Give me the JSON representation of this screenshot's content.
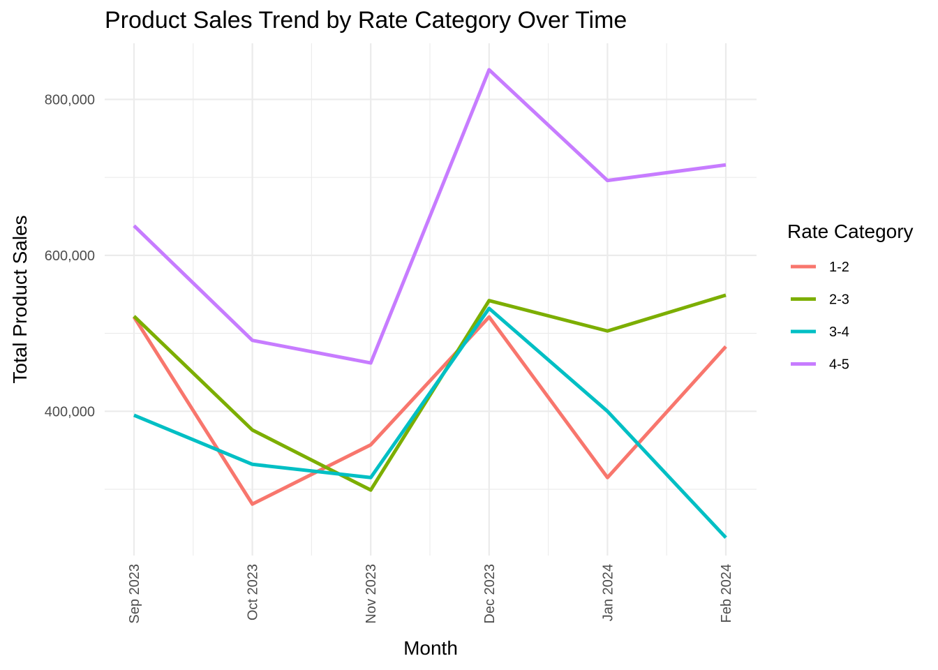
{
  "chart_data": {
    "type": "line",
    "title": "Product Sales Trend by Rate Category Over Time",
    "xlabel": "Month",
    "ylabel": "Total Product Sales",
    "categories": [
      "Sep 2023",
      "Oct 2023",
      "Nov 2023",
      "Dec 2023",
      "Jan 2024",
      "Feb 2024"
    ],
    "y_ticks": [
      400000,
      600000,
      800000
    ],
    "y_tick_labels": [
      "400,000",
      "600,000",
      "800,000"
    ],
    "ylim": [
      215000,
      872000
    ],
    "grid": true,
    "legend": {
      "title": "Rate Category",
      "position": "right"
    },
    "series": [
      {
        "name": "1-2",
        "color": "#F8766D",
        "values": [
          521000,
          281000,
          357000,
          521000,
          315000,
          483000
        ]
      },
      {
        "name": "2-3",
        "color": "#7CAE00",
        "values": [
          522000,
          376000,
          299000,
          542000,
          503000,
          549000
        ]
      },
      {
        "name": "3-4",
        "color": "#00BFC4",
        "values": [
          395000,
          332000,
          315000,
          532000,
          400000,
          238000
        ]
      },
      {
        "name": "4-5",
        "color": "#C77CFF",
        "values": [
          638000,
          491000,
          462000,
          838000,
          696000,
          716000
        ]
      }
    ]
  }
}
